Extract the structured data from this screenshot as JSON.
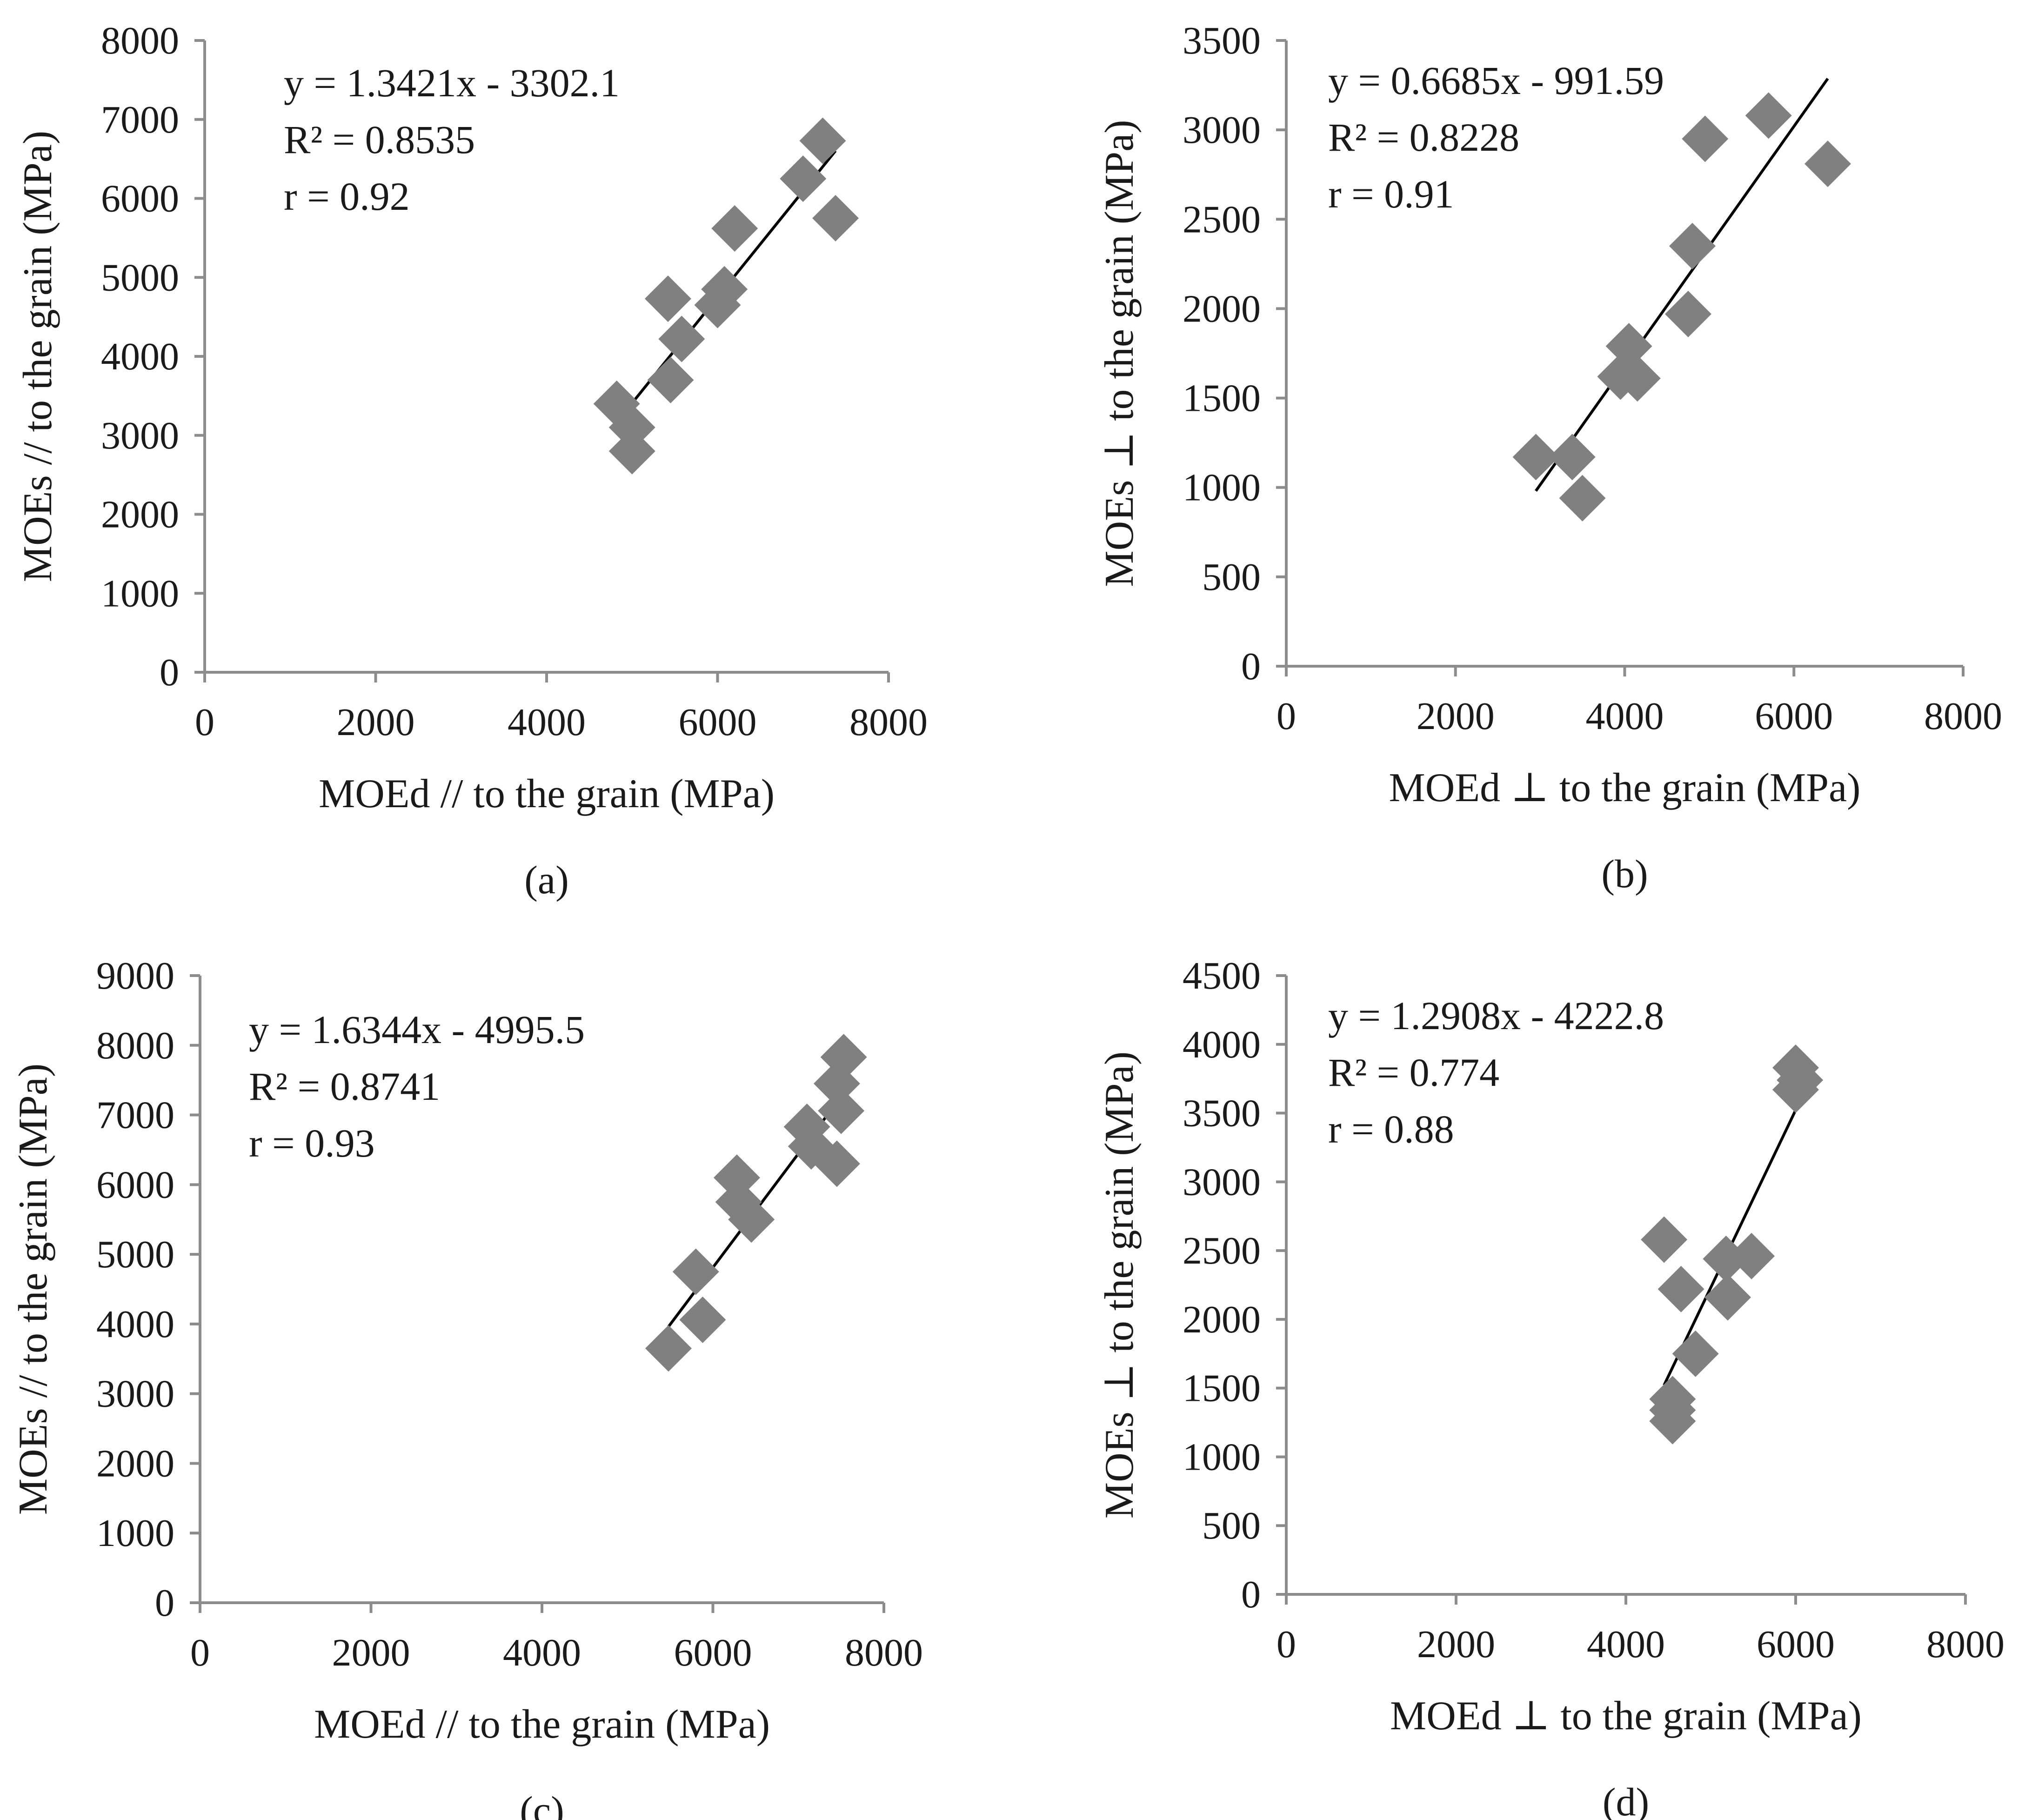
{
  "colors": {
    "marker": "#808080",
    "axis": "#8c8c8c",
    "fit_line": "#000000",
    "text": "#1a1a1a"
  },
  "chart_data": [
    {
      "type": "scatter",
      "panel_label": "(a)",
      "xlabel": "MOEd // to the grain (MPa)",
      "ylabel": "MOEs // to the grain (MPa)",
      "xlim": [
        0,
        8000
      ],
      "ylim": [
        0,
        8000
      ],
      "xticks": [
        0,
        2000,
        4000,
        6000,
        8000
      ],
      "yticks": [
        0,
        1000,
        2000,
        3000,
        4000,
        5000,
        6000,
        7000,
        8000
      ],
      "marker": "diamond",
      "grid": false,
      "points": [
        {
          "x": 4820,
          "y": 3400
        },
        {
          "x": 5000,
          "y": 3100
        },
        {
          "x": 5000,
          "y": 2800
        },
        {
          "x": 5420,
          "y": 4730
        },
        {
          "x": 5450,
          "y": 3700
        },
        {
          "x": 5580,
          "y": 4220
        },
        {
          "x": 6000,
          "y": 4650
        },
        {
          "x": 6080,
          "y": 4850
        },
        {
          "x": 6200,
          "y": 5620
        },
        {
          "x": 7000,
          "y": 6250
        },
        {
          "x": 7230,
          "y": 6730
        },
        {
          "x": 7380,
          "y": 5750
        }
      ],
      "trendline": {
        "slope": 1.3421,
        "intercept": -3302.1,
        "x_range": [
          4820,
          7380
        ]
      },
      "annotations": [
        "y = 1.3421x - 3302.1",
        "R² = 0.8535",
        "r = 0.92"
      ]
    },
    {
      "type": "scatter",
      "panel_label": "(b)",
      "xlabel": "MOEd ⊥ to the grain (MPa)",
      "ylabel": "MOEs ⊥ to the grain (MPa)",
      "xlim": [
        0,
        8000
      ],
      "ylim": [
        0,
        3500
      ],
      "xticks": [
        0,
        2000,
        4000,
        6000,
        8000
      ],
      "yticks": [
        0,
        500,
        1000,
        1500,
        2000,
        2500,
        3000,
        3500
      ],
      "marker": "diamond",
      "grid": false,
      "points": [
        {
          "x": 2950,
          "y": 1170
        },
        {
          "x": 3380,
          "y": 1170
        },
        {
          "x": 3500,
          "y": 940
        },
        {
          "x": 3950,
          "y": 1620
        },
        {
          "x": 4050,
          "y": 1790
        },
        {
          "x": 4150,
          "y": 1610
        },
        {
          "x": 4750,
          "y": 1970
        },
        {
          "x": 4800,
          "y": 2350
        },
        {
          "x": 4950,
          "y": 2950
        },
        {
          "x": 5700,
          "y": 3080
        },
        {
          "x": 6400,
          "y": 2810
        }
      ],
      "trendline": {
        "slope": 0.6685,
        "intercept": -991.59,
        "x_range": [
          2950,
          6400
        ]
      },
      "annotations": [
        "y = 0.6685x - 991.59",
        "R² = 0.8228",
        "r = 0.91"
      ]
    },
    {
      "type": "scatter",
      "panel_label": "(c)",
      "xlabel": "MOEd // to the grain (MPa)",
      "ylabel": "MOEs // to the grain (MPa)",
      "xlim": [
        0,
        8000
      ],
      "ylim": [
        0,
        9000
      ],
      "xticks": [
        0,
        2000,
        4000,
        6000,
        8000
      ],
      "yticks": [
        0,
        1000,
        2000,
        3000,
        4000,
        5000,
        6000,
        7000,
        8000,
        9000
      ],
      "marker": "diamond",
      "grid": false,
      "points": [
        {
          "x": 5480,
          "y": 3650
        },
        {
          "x": 5800,
          "y": 4750
        },
        {
          "x": 5880,
          "y": 4060
        },
        {
          "x": 6280,
          "y": 6100
        },
        {
          "x": 6300,
          "y": 5750
        },
        {
          "x": 6450,
          "y": 5500
        },
        {
          "x": 7100,
          "y": 6830
        },
        {
          "x": 7150,
          "y": 6550
        },
        {
          "x": 7450,
          "y": 7450
        },
        {
          "x": 7450,
          "y": 6300
        },
        {
          "x": 7500,
          "y": 7060
        },
        {
          "x": 7530,
          "y": 7830
        }
      ],
      "trendline": {
        "slope": 1.6344,
        "intercept": -4995.5,
        "x_range": [
          5480,
          7530
        ]
      },
      "annotations": [
        "y = 1.6344x - 4995.5",
        "R² = 0.8741",
        "r = 0.93"
      ]
    },
    {
      "type": "scatter",
      "panel_label": "(d)",
      "xlabel": "MOEd ⊥ to the grain (MPa)",
      "ylabel": "MOEs ⊥ to the grain (MPa)",
      "xlim": [
        0,
        8000
      ],
      "ylim": [
        0,
        4500
      ],
      "xticks": [
        0,
        2000,
        4000,
        6000,
        8000
      ],
      "yticks": [
        0,
        500,
        1000,
        1500,
        2000,
        2500,
        3000,
        3500,
        4000,
        4500
      ],
      "marker": "diamond",
      "grid": false,
      "points": [
        {
          "x": 4450,
          "y": 2580
        },
        {
          "x": 4550,
          "y": 1420
        },
        {
          "x": 4550,
          "y": 1340
        },
        {
          "x": 4550,
          "y": 1260
        },
        {
          "x": 4650,
          "y": 2220
        },
        {
          "x": 4820,
          "y": 1750
        },
        {
          "x": 5180,
          "y": 2440
        },
        {
          "x": 5200,
          "y": 2160
        },
        {
          "x": 5480,
          "y": 2460
        },
        {
          "x": 6000,
          "y": 3830
        },
        {
          "x": 6050,
          "y": 3740
        },
        {
          "x": 6000,
          "y": 3670
        }
      ],
      "trendline": {
        "slope": 1.2908,
        "intercept": -4222.8,
        "x_range": [
          4450,
          6050
        ]
      },
      "annotations": [
        "y = 1.2908x - 4222.8",
        "R² = 0.774",
        "r = 0.88"
      ]
    }
  ]
}
